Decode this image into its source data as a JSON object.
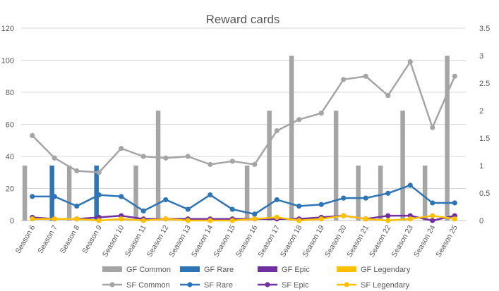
{
  "chart_data": {
    "type": "bar",
    "title": "Reward cards",
    "categories": [
      "Season 6",
      "Season 7",
      "Season 8",
      "Season 9",
      "Season 10",
      "Season 11",
      "Season 12",
      "Season 13",
      "Season 14",
      "Season 15",
      "Season 16",
      "Season 17",
      "Season 18",
      "Season 19",
      "Season 20",
      "Season 21",
      "Season 22",
      "Season 23",
      "Season 24",
      "Season 25"
    ],
    "y_left": {
      "min": 0,
      "max": 120,
      "ticks": [
        "0",
        "20",
        "40",
        "60",
        "80",
        "100",
        "120"
      ]
    },
    "y_right": {
      "min": 0,
      "max": 3.5,
      "ticks": [
        "0",
        "0.5",
        "1",
        "1.5",
        "2",
        "2.5",
        "3",
        "3.5"
      ]
    },
    "grid": true,
    "legend_position": "bottom",
    "bar_series": [
      {
        "name": "GF Common",
        "axis": "right",
        "color": "#a5a5a5",
        "values": [
          1,
          0,
          1,
          0,
          0,
          1,
          2,
          0,
          0,
          0,
          1,
          2,
          3,
          0,
          2,
          1,
          1,
          2,
          1,
          3
        ]
      },
      {
        "name": "GF Rare",
        "axis": "right",
        "color": "#2e75b6",
        "values": [
          0,
          1,
          0,
          1,
          0,
          0,
          0,
          0,
          0,
          0,
          0,
          0,
          0,
          0,
          0,
          0,
          0,
          0,
          0,
          0
        ]
      },
      {
        "name": "GF Epic",
        "axis": "right",
        "color": "#7030a0",
        "values": [
          0,
          0,
          0,
          0,
          0,
          0,
          0,
          0,
          0,
          0,
          0,
          0,
          0,
          0,
          0,
          0,
          0,
          0,
          0,
          0
        ]
      },
      {
        "name": "GF Legendary",
        "axis": "right",
        "color": "#ffc000",
        "values": [
          0,
          0,
          0,
          0,
          0,
          0,
          0,
          0,
          0,
          0,
          0,
          0,
          0,
          0,
          0,
          0,
          0,
          0,
          0,
          0
        ]
      }
    ],
    "line_series": [
      {
        "name": "SF Common",
        "axis": "left",
        "color": "#a5a5a5",
        "values": [
          53,
          39,
          31,
          30,
          45,
          40,
          39,
          40,
          35,
          37,
          35,
          56,
          63,
          67,
          88,
          90,
          78,
          99,
          58,
          90
        ]
      },
      {
        "name": "SF Rare",
        "axis": "left",
        "color": "#2e75b6",
        "values": [
          15,
          15,
          9,
          16,
          15,
          6,
          13,
          7,
          16,
          7,
          4,
          13,
          9,
          10,
          14,
          14,
          17,
          22,
          11,
          11
        ]
      },
      {
        "name": "SF Epic",
        "axis": "left",
        "color": "#7030a0",
        "values": [
          2,
          1,
          1,
          2,
          3,
          1,
          1,
          1,
          1,
          1,
          1,
          1,
          1,
          2,
          3,
          1,
          3,
          3,
          0,
          3
        ]
      },
      {
        "name": "SF Legendary",
        "axis": "left",
        "color": "#ffc000",
        "values": [
          1,
          1,
          1,
          0,
          1,
          0,
          1,
          0,
          0,
          0,
          1,
          2,
          0,
          1,
          3,
          1,
          0,
          1,
          3,
          1
        ]
      }
    ]
  }
}
